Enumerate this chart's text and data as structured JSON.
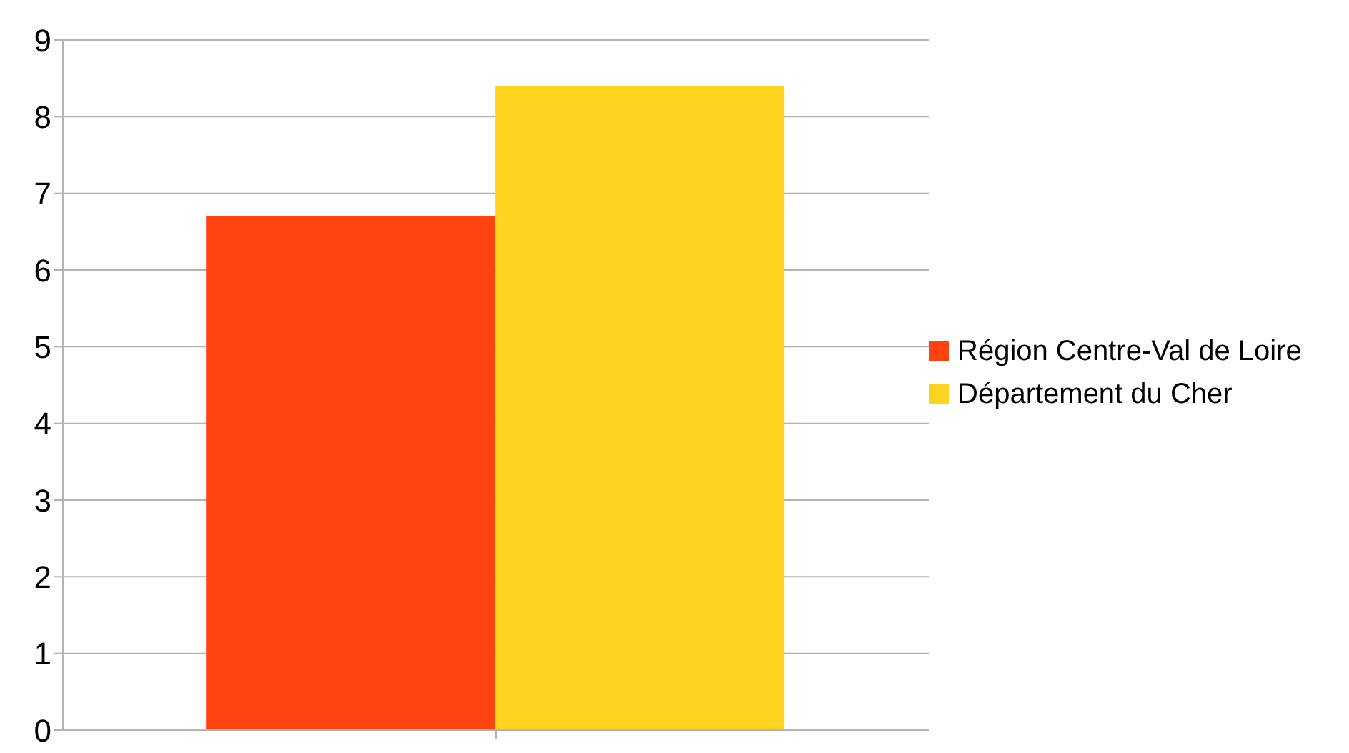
{
  "chart_data": {
    "type": "bar",
    "categories": [
      null
    ],
    "series": [
      {
        "name": "Région Centre-Val de Loire",
        "color": "#ff4411",
        "values": [
          6.7
        ]
      },
      {
        "name": "Département du Cher",
        "color": "#ffd320",
        "values": [
          8.4
        ]
      }
    ],
    "ylim": [
      0,
      9
    ],
    "yticks": [
      0,
      1,
      2,
      3,
      4,
      5,
      6,
      7,
      8,
      9
    ],
    "grid": "y",
    "legend": "right"
  }
}
